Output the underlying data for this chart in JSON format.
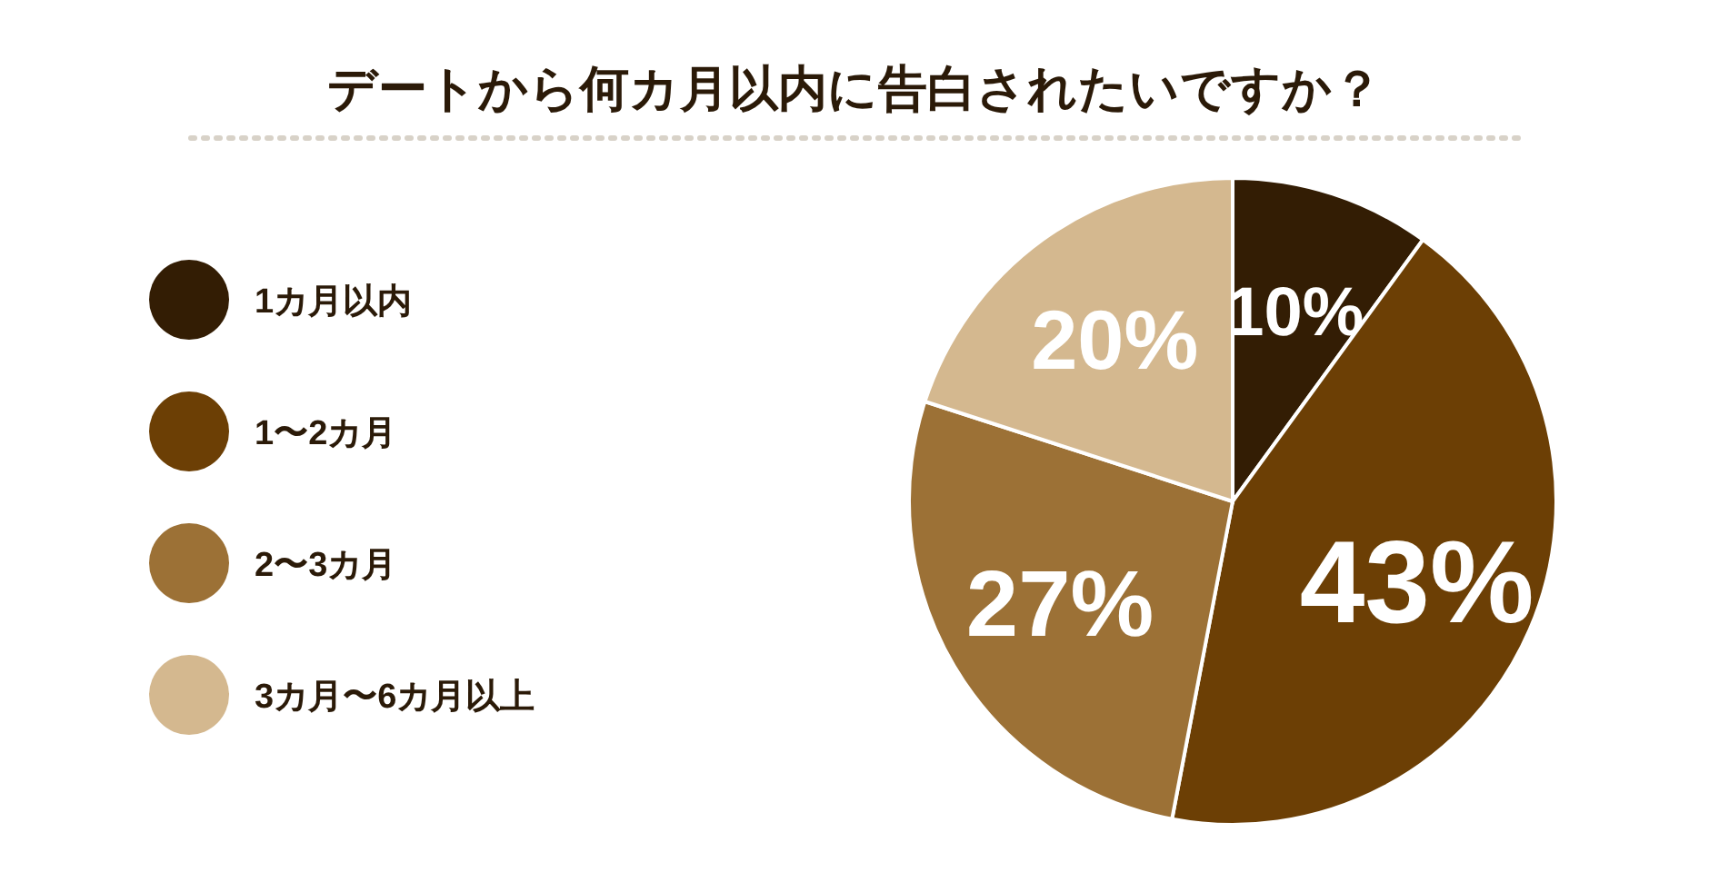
{
  "chart_data": {
    "type": "pie",
    "title": "デートから何カ月以内に告白されたいですか？",
    "categories": [
      "1カ月以内",
      "1〜2カ月",
      "2〜3カ月",
      "3カ月〜6カ月以上"
    ],
    "values": [
      10,
      43,
      27,
      20
    ],
    "colors": [
      "#331d04",
      "#6c3f05",
      "#9c7136",
      "#d4b88f"
    ],
    "value_labels": [
      "10%",
      "43%",
      "27%",
      "20%"
    ],
    "legend": "left"
  }
}
